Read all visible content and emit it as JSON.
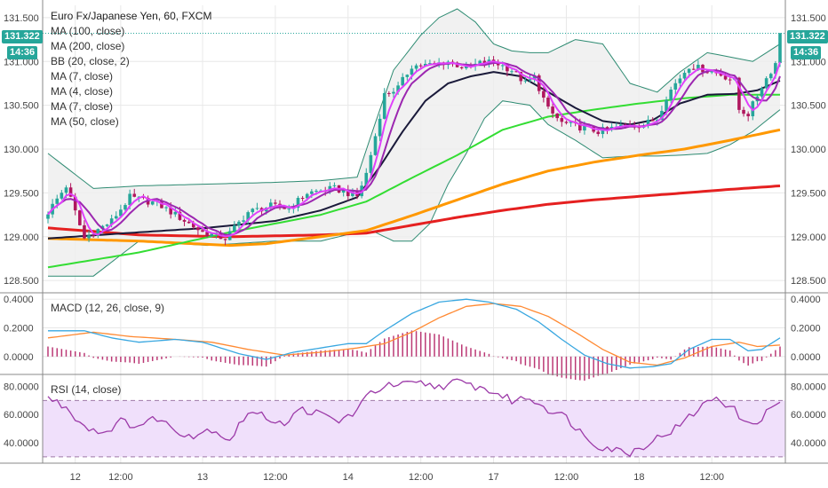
{
  "legend": {
    "title": "Euro Fx/Japanese Yen, 60, FXCM",
    "items": [
      "MA (100, close)",
      "MA (200, close)",
      "BB (20, close, 2)",
      "MA (7, close)",
      "MA (4, close)",
      "MA (7, close)",
      "MA (50, close)"
    ]
  },
  "price_tag": {
    "value": "131.322",
    "countdown": "14:36",
    "color": "#26a69a"
  },
  "colors": {
    "bull": "#26a69a",
    "bear": "#b0175e",
    "bb_band": "#2e8b72",
    "bb_fill": "#eeeeee",
    "ma100": "#ff9800",
    "ma200": "#e52020",
    "ma50": "#33dd33",
    "ma7a": "#9c27b0",
    "ma4": "#e040fb",
    "ma7b": "#1a1a3a",
    "macd": "#39a7e0",
    "signal": "#ff8a33",
    "hist": "#b0175e",
    "rsi": "#9c3aa8",
    "rsi_fill": "#f0e0fb",
    "rsi_band": "#9e7aa8"
  },
  "chart_data": [
    {
      "type": "candlestick",
      "title": "Euro Fx/Japanese Yen, 60, FXCM",
      "ylim": [
        128.4,
        131.6
      ],
      "yticks": [
        "131.500",
        "131.000",
        "130.500",
        "130.000",
        "129.500",
        "129.000",
        "128.500"
      ],
      "xticks": [
        "12",
        "12:00",
        "13",
        "12:00",
        "14",
        "12:00",
        "17",
        "12:00",
        "18",
        "12:00"
      ],
      "last_price": 131.322,
      "price_keys": [
        [
          0,
          129.28
        ],
        [
          4,
          129.58
        ],
        [
          8,
          128.98
        ],
        [
          14,
          129.18
        ],
        [
          18,
          129.45
        ],
        [
          24,
          129.38
        ],
        [
          28,
          129.25
        ],
        [
          34,
          129.05
        ],
        [
          39,
          128.98
        ],
        [
          44,
          129.28
        ],
        [
          49,
          129.35
        ],
        [
          53,
          129.32
        ],
        [
          57,
          129.5
        ],
        [
          63,
          129.55
        ],
        [
          68,
          129.46
        ],
        [
          70,
          129.72
        ],
        [
          72,
          130.15
        ],
        [
          74,
          130.62
        ],
        [
          77,
          130.7
        ],
        [
          80,
          130.95
        ],
        [
          84,
          130.96
        ],
        [
          88,
          131.0
        ],
        [
          92,
          130.92
        ],
        [
          95,
          130.98
        ],
        [
          98,
          131.0
        ],
        [
          102,
          130.9
        ],
        [
          105,
          130.75
        ],
        [
          107,
          130.82
        ],
        [
          110,
          130.45
        ],
        [
          113,
          130.3
        ],
        [
          117,
          130.25
        ],
        [
          121,
          130.2
        ],
        [
          127,
          130.27
        ],
        [
          131,
          130.28
        ],
        [
          134,
          130.35
        ],
        [
          136,
          130.6
        ],
        [
          138,
          130.75
        ],
        [
          141,
          130.95
        ],
        [
          145,
          130.9
        ],
        [
          148,
          130.85
        ],
        [
          151,
          130.78
        ],
        [
          152,
          130.45
        ],
        [
          154,
          130.4
        ],
        [
          157,
          130.72
        ],
        [
          160,
          130.98
        ],
        [
          161,
          131.322
        ]
      ],
      "ma7_keys": [
        [
          0,
          128.98
        ],
        [
          20,
          129.05
        ],
        [
          35,
          129.1
        ],
        [
          50,
          129.18
        ],
        [
          60,
          129.3
        ],
        [
          68,
          129.45
        ],
        [
          73,
          129.8
        ],
        [
          78,
          130.2
        ],
        [
          83,
          130.55
        ],
        [
          88,
          130.75
        ],
        [
          93,
          130.83
        ],
        [
          98,
          130.88
        ],
        [
          104,
          130.83
        ],
        [
          110,
          130.65
        ],
        [
          116,
          130.47
        ],
        [
          122,
          130.32
        ],
        [
          128,
          130.28
        ],
        [
          133,
          130.33
        ],
        [
          139,
          130.52
        ],
        [
          145,
          130.62
        ],
        [
          151,
          130.63
        ],
        [
          156,
          130.67
        ],
        [
          161,
          130.78
        ]
      ],
      "ma50_keys": [
        [
          0,
          128.65
        ],
        [
          20,
          128.82
        ],
        [
          40,
          129.05
        ],
        [
          60,
          129.25
        ],
        [
          70,
          129.4
        ],
        [
          80,
          129.67
        ],
        [
          90,
          129.93
        ],
        [
          100,
          130.22
        ],
        [
          110,
          130.37
        ],
        [
          120,
          130.45
        ],
        [
          130,
          130.52
        ],
        [
          140,
          130.58
        ],
        [
          150,
          130.62
        ],
        [
          161,
          130.62
        ]
      ],
      "ma100_keys": [
        [
          0,
          128.98
        ],
        [
          20,
          128.95
        ],
        [
          40,
          128.9
        ],
        [
          48,
          128.92
        ],
        [
          60,
          129.0
        ],
        [
          70,
          129.07
        ],
        [
          80,
          129.24
        ],
        [
          90,
          129.42
        ],
        [
          100,
          129.6
        ],
        [
          110,
          129.75
        ],
        [
          120,
          129.85
        ],
        [
          130,
          129.93
        ],
        [
          140,
          130.0
        ],
        [
          150,
          130.1
        ],
        [
          161,
          130.22
        ]
      ],
      "ma200_keys": [
        [
          0,
          129.1
        ],
        [
          20,
          129.02
        ],
        [
          40,
          129.0
        ],
        [
          60,
          129.02
        ],
        [
          70,
          129.04
        ],
        [
          80,
          129.13
        ],
        [
          90,
          129.22
        ],
        [
          100,
          129.3
        ],
        [
          110,
          129.37
        ],
        [
          120,
          129.42
        ],
        [
          130,
          129.46
        ],
        [
          140,
          129.5
        ],
        [
          150,
          129.54
        ],
        [
          161,
          129.58
        ]
      ],
      "bb_upper_keys": [
        [
          0,
          129.95
        ],
        [
          10,
          129.55
        ],
        [
          20,
          129.58
        ],
        [
          35,
          129.6
        ],
        [
          50,
          129.62
        ],
        [
          60,
          129.64
        ],
        [
          68,
          129.68
        ],
        [
          72,
          130.3
        ],
        [
          76,
          130.9
        ],
        [
          82,
          131.3
        ],
        [
          86,
          131.5
        ],
        [
          90,
          131.6
        ],
        [
          94,
          131.45
        ],
        [
          98,
          131.2
        ],
        [
          102,
          131.12
        ],
        [
          106,
          131.1
        ],
        [
          110,
          131.1
        ],
        [
          116,
          131.25
        ],
        [
          122,
          131.2
        ],
        [
          128,
          130.75
        ],
        [
          134,
          130.65
        ],
        [
          139,
          130.88
        ],
        [
          145,
          131.1
        ],
        [
          150,
          131.05
        ],
        [
          155,
          131.0
        ],
        [
          161,
          131.2
        ]
      ],
      "bb_lower_keys": [
        [
          0,
          128.55
        ],
        [
          10,
          128.55
        ],
        [
          20,
          128.95
        ],
        [
          35,
          128.9
        ],
        [
          50,
          128.95
        ],
        [
          60,
          128.95
        ],
        [
          68,
          129.05
        ],
        [
          72,
          129.05
        ],
        [
          76,
          128.95
        ],
        [
          80,
          128.95
        ],
        [
          84,
          129.15
        ],
        [
          88,
          129.6
        ],
        [
          92,
          129.95
        ],
        [
          96,
          130.35
        ],
        [
          100,
          130.55
        ],
        [
          106,
          130.5
        ],
        [
          110,
          130.28
        ],
        [
          116,
          130.1
        ],
        [
          122,
          129.9
        ],
        [
          128,
          129.92
        ],
        [
          134,
          129.92
        ],
        [
          139,
          129.93
        ],
        [
          145,
          129.95
        ],
        [
          150,
          130.05
        ],
        [
          155,
          130.2
        ],
        [
          161,
          130.45
        ]
      ]
    },
    {
      "type": "line",
      "title": "MACD (12, 26, close, 9)",
      "ylim": [
        -0.1,
        0.42
      ],
      "yticks": [
        "0.4000",
        "0.2000",
        "0.0000"
      ],
      "macd_keys": [
        [
          0,
          0.18
        ],
        [
          8,
          0.18
        ],
        [
          14,
          0.13
        ],
        [
          20,
          0.1
        ],
        [
          28,
          0.12
        ],
        [
          34,
          0.1
        ],
        [
          42,
          0.02
        ],
        [
          48,
          -0.02
        ],
        [
          54,
          0.03
        ],
        [
          60,
          0.06
        ],
        [
          66,
          0.09
        ],
        [
          70,
          0.09
        ],
        [
          74,
          0.18
        ],
        [
          80,
          0.3
        ],
        [
          86,
          0.38
        ],
        [
          92,
          0.4
        ],
        [
          97,
          0.38
        ],
        [
          103,
          0.33
        ],
        [
          108,
          0.24
        ],
        [
          113,
          0.12
        ],
        [
          118,
          0.01
        ],
        [
          123,
          -0.05
        ],
        [
          128,
          -0.08
        ],
        [
          133,
          -0.07
        ],
        [
          137,
          -0.05
        ],
        [
          141,
          0.05
        ],
        [
          146,
          0.12
        ],
        [
          150,
          0.12
        ],
        [
          154,
          0.04
        ],
        [
          157,
          0.05
        ],
        [
          161,
          0.13
        ]
      ],
      "signal_keys": [
        [
          0,
          0.13
        ],
        [
          10,
          0.17
        ],
        [
          18,
          0.14
        ],
        [
          28,
          0.12
        ],
        [
          36,
          0.1
        ],
        [
          44,
          0.05
        ],
        [
          52,
          0.01
        ],
        [
          60,
          0.03
        ],
        [
          68,
          0.06
        ],
        [
          74,
          0.09
        ],
        [
          80,
          0.17
        ],
        [
          86,
          0.27
        ],
        [
          92,
          0.35
        ],
        [
          98,
          0.37
        ],
        [
          104,
          0.35
        ],
        [
          110,
          0.28
        ],
        [
          116,
          0.17
        ],
        [
          122,
          0.05
        ],
        [
          128,
          -0.04
        ],
        [
          134,
          -0.06
        ],
        [
          140,
          -0.01
        ],
        [
          146,
          0.07
        ],
        [
          152,
          0.1
        ],
        [
          156,
          0.07
        ],
        [
          161,
          0.08
        ]
      ]
    },
    {
      "type": "line",
      "title": "RSI (14, close)",
      "ylim": [
        28,
        86
      ],
      "yticks": [
        "80.0000",
        "60.0000",
        "40.0000"
      ],
      "bands": [
        70,
        30
      ],
      "rsi_keys": [
        [
          0,
          72
        ],
        [
          4,
          65
        ],
        [
          8,
          52
        ],
        [
          12,
          47
        ],
        [
          16,
          55
        ],
        [
          20,
          52
        ],
        [
          24,
          58
        ],
        [
          28,
          49
        ],
        [
          32,
          45
        ],
        [
          36,
          50
        ],
        [
          40,
          42
        ],
        [
          44,
          62
        ],
        [
          48,
          58
        ],
        [
          52,
          54
        ],
        [
          56,
          64
        ],
        [
          60,
          60
        ],
        [
          64,
          55
        ],
        [
          68,
          63
        ],
        [
          71,
          76
        ],
        [
          74,
          80
        ],
        [
          78,
          81
        ],
        [
          82,
          82
        ],
        [
          86,
          80
        ],
        [
          90,
          83
        ],
        [
          94,
          80
        ],
        [
          98,
          76
        ],
        [
          102,
          70
        ],
        [
          106,
          72
        ],
        [
          110,
          64
        ],
        [
          114,
          58
        ],
        [
          118,
          45
        ],
        [
          121,
          38
        ],
        [
          125,
          35
        ],
        [
          128,
          33
        ],
        [
          131,
          38
        ],
        [
          135,
          45
        ],
        [
          139,
          52
        ],
        [
          143,
          64
        ],
        [
          147,
          73
        ],
        [
          151,
          63
        ],
        [
          154,
          52
        ],
        [
          157,
          58
        ],
        [
          161,
          70
        ]
      ]
    }
  ]
}
